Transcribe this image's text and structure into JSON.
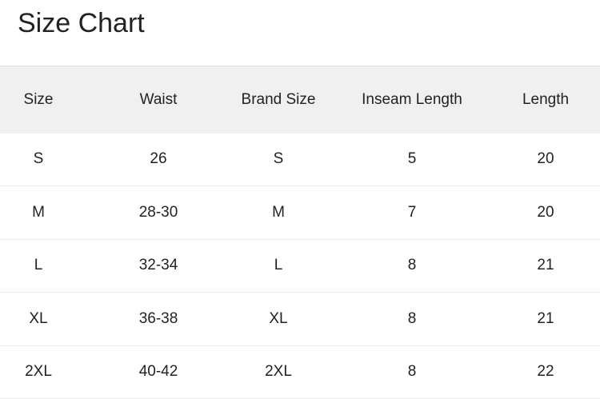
{
  "title": "Size Chart",
  "headers": [
    "Size",
    "Waist",
    "Brand Size",
    "Inseam Length",
    "Length"
  ],
  "rows": [
    [
      "S",
      "26",
      "S",
      "5",
      "20"
    ],
    [
      "M",
      "28-30",
      "M",
      "7",
      "20"
    ],
    [
      "L",
      "32-34",
      "L",
      "8",
      "21"
    ],
    [
      "XL",
      "36-38",
      "XL",
      "8",
      "21"
    ],
    [
      "2XL",
      "40-42",
      "2XL",
      "8",
      "22"
    ]
  ]
}
